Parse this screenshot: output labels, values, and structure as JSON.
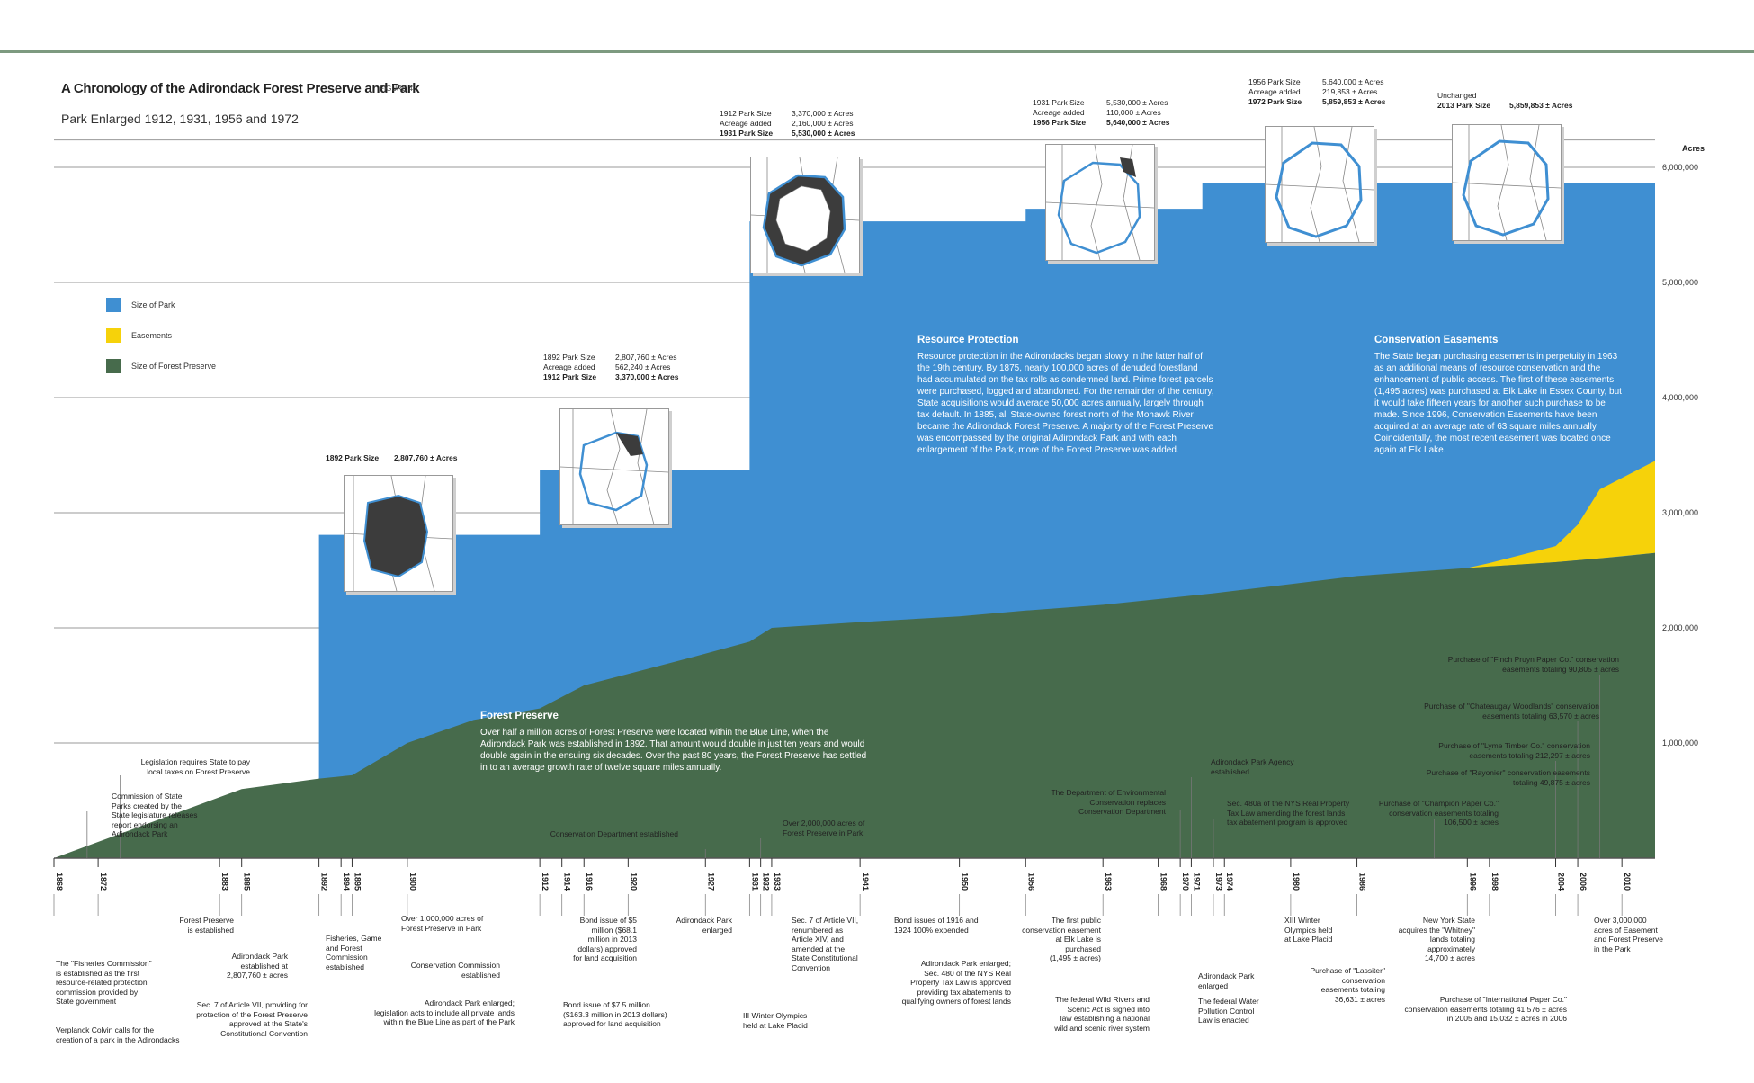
{
  "header": {
    "title": "A Chronology of the Adirondack Forest Preserve and Park",
    "figure_label": "FIGURE 4",
    "subtitle": "Park Enlarged 1912, 1931, 1956 and 1972"
  },
  "legend": [
    {
      "label": "Size of Park",
      "color": "#3f8fd2"
    },
    {
      "label": "Easements",
      "color": "#f6d20a"
    },
    {
      "label": "Size of Forest Preserve",
      "color": "#476b4c"
    }
  ],
  "colors": {
    "park": "#3f8fd2",
    "easements": "#f6d20a",
    "preserve": "#476b4c",
    "rule": "#7d9a80"
  },
  "chart_data": {
    "type": "area",
    "ylabel": "Acres",
    "ylim": [
      0,
      6300000
    ],
    "yticks": [
      "1,000,000",
      "2,000,000",
      "3,000,000",
      "4,000,000",
      "5,000,000",
      "6,000,000"
    ],
    "xlim": [
      1868,
      2013
    ],
    "xtick_labels": [
      "1868",
      "1872",
      "1885",
      "1883",
      "1892",
      "1894",
      "1895",
      "1900",
      "1912",
      "1914",
      "1916",
      "1920",
      "1927",
      "1931",
      "1932",
      "1933",
      "1941",
      "1950",
      "1956",
      "1963",
      "1968",
      "1970",
      "1971",
      "1973",
      "1974",
      "1980",
      "1986",
      "1996",
      "1998",
      "2004",
      "2006",
      "2010"
    ],
    "series": [
      {
        "name": "Size of Park",
        "values": [
          [
            1892,
            2807760
          ],
          [
            1912,
            2807760
          ],
          [
            1912,
            3370000
          ],
          [
            1931,
            3370000
          ],
          [
            1931,
            5530000
          ],
          [
            1956,
            5530000
          ],
          [
            1956,
            5640000
          ],
          [
            1972,
            5640000
          ],
          [
            1972,
            5859853
          ],
          [
            2013,
            5859853
          ]
        ]
      },
      {
        "name": "Size of Forest Preserve",
        "values": [
          [
            1868,
            0
          ],
          [
            1885,
            600000
          ],
          [
            1892,
            690000
          ],
          [
            1895,
            720000
          ],
          [
            1900,
            1000000
          ],
          [
            1906,
            1200000
          ],
          [
            1912,
            1300000
          ],
          [
            1916,
            1500000
          ],
          [
            1920,
            1600000
          ],
          [
            1926,
            1750000
          ],
          [
            1931,
            1880000
          ],
          [
            1933,
            2000000
          ],
          [
            1941,
            2050000
          ],
          [
            1950,
            2100000
          ],
          [
            1956,
            2150000
          ],
          [
            1963,
            2200000
          ],
          [
            1968,
            2250000
          ],
          [
            1973,
            2300000
          ],
          [
            1980,
            2380000
          ],
          [
            1986,
            2450000
          ],
          [
            1996,
            2520000
          ],
          [
            2004,
            2570000
          ],
          [
            2010,
            2620000
          ],
          [
            2013,
            2650000
          ]
        ]
      },
      {
        "name": "Easements",
        "values": [
          [
            1963,
            0
          ],
          [
            1996,
            0
          ],
          [
            1998,
            30000
          ],
          [
            2004,
            140000
          ],
          [
            2006,
            310000
          ],
          [
            2008,
            600000
          ],
          [
            2013,
            800000
          ]
        ]
      }
    ],
    "annotations": {
      "resource_protection": {
        "title": "Resource Protection",
        "text": "Resource protection in the Adirondacks began slowly in the latter half of the 19th century. By 1875, nearly 100,000 acres of denuded forestland had accumulated on the tax rolls as condemned land. Prime forest parcels were purchased, logged and abandoned. For the remainder of the century, State acquisitions would average 50,000 acres annually, largely through tax default. In 1885, all State-owned forest north of the Mohawk River became the Adirondack Forest Preserve. A majority of the Forest Preserve was encompassed by the original Adirondack Park and with each enlargement of the Park, more of the Forest Preserve was added."
      },
      "conservation_easements": {
        "title": "Conservation Easements",
        "text": "The State began purchasing easements in perpetuity in 1963 as an additional means of resource conservation and the enhancement of public access. The first of these easements (1,495 acres) was purchased at Elk Lake in Essex County, but it would take fifteen years for another such purchase to be made. Since 1996, Conservation Easements have been acquired at an average rate of 63 square miles annually. Coincidentally, the most recent easement was located once again at Elk Lake."
      },
      "forest_preserve": {
        "title": "Forest Preserve",
        "text": "Over half a million acres of Forest Preserve were located within the Blue Line, when the Adirondack Park was established in 1892. That amount would double in just ten years and would double again in the ensuing six decades. Over the past 80 years, the Forest Preserve has settled in to an average growth rate of twelve square miles annually."
      }
    },
    "park_tables": [
      {
        "rows": [
          {
            "label": "1892 Park Size",
            "value": "2,807,760 ± Acres",
            "bold": true
          }
        ]
      },
      {
        "rows": [
          {
            "label": "1892 Park Size",
            "value": "2,807,760 ± Acres",
            "bold": false
          },
          {
            "label": "Acreage added",
            "value": "562,240 ± Acres",
            "bold": false
          },
          {
            "label": "1912 Park Size",
            "value": "3,370,000 ± Acres",
            "bold": true
          }
        ]
      },
      {
        "rows": [
          {
            "label": "1912 Park Size",
            "value": "3,370,000 ± Acres",
            "bold": false
          },
          {
            "label": "Acreage added",
            "value": "2,160,000 ± Acres",
            "bold": false
          },
          {
            "label": "1931 Park Size",
            "value": "5,530,000 ± Acres",
            "bold": true
          }
        ]
      },
      {
        "rows": [
          {
            "label": "1931 Park Size",
            "value": "5,530,000 ± Acres",
            "bold": false
          },
          {
            "label": "Acreage added",
            "value": "110,000 ± Acres",
            "bold": false
          },
          {
            "label": "1956 Park Size",
            "value": "5,640,000 ± Acres",
            "bold": true
          }
        ]
      },
      {
        "rows": [
          {
            "label": "1956 Park Size",
            "value": "5,640,000 ± Acres",
            "bold": false
          },
          {
            "label": "Acreage added",
            "value": "219,853 ± Acres",
            "bold": false
          },
          {
            "label": "1972 Park Size",
            "value": "5,859,853 ± Acres",
            "bold": true
          }
        ]
      },
      {
        "rows": [
          {
            "label": "Unchanged",
            "value": "",
            "bold": false
          },
          {
            "label": "2013 Park Size",
            "value": "5,859,853 ± Acres",
            "bold": true
          }
        ]
      }
    ],
    "upper_callouts": [
      "Legislation requires State to pay\nlocal taxes on Forest Preserve",
      "Commission of State\nParks created by the\nState legislature releases\nreport endorsing an\nAdirondack Park",
      "Conservation Department established",
      "Over 2,000,000 acres of\nForest Preserve in Park",
      "The Department of Environmental\nConservation replaces\nConservation Department",
      "Adirondack Park Agency\nestablished",
      "Sec. 480a of the NYS Real Property\nTax Law amending the forest lands\ntax abatement program is approved",
      "Purchase of \"Champion Paper Co.\"\nconservation easements totaling\n106,500 ± acres",
      "Purchase of \"Lyme Timber Co.\" conservation\neasements totaling 212,297 ± acres",
      "Purchase of \"Rayonier\" conservation easements\ntotaling 49,875 ± acres",
      "Purchase of \"Chateaugay Woodlands\" conservation\neasements totaling 63,570 ± acres",
      "Purchase of \"Finch Pruyn Paper Co.\" conservation\neasements totaling 90,805 ± acres"
    ],
    "lower_callouts": [
      "The \"Fisheries Commission\"\nis established as the first\nresource-related protection\ncommission provided by\nState government",
      "Verplanck Colvin calls for the\ncreation of a park in the Adirondacks",
      "Forest Preserve\nis established",
      "Adirondack Park\nestablished at\n2,807,760 ± acres",
      "Sec. 7 of Article VII, providing for\nprotection of the Forest Preserve\napproved at the State's\nConstitutional Convention",
      "Fisheries, Game\nand Forest\nCommission\nestablished",
      "Over 1,000,000 acres of\nForest Preserve in Park",
      "Conservation Commission\nestablished",
      "Adirondack Park enlarged;\nlegislation acts to include all private lands\nwithin the Blue Line as part of the Park",
      "Bond issue of $5\nmillion ($68.1\nmillion in 2013\ndollars) approved\nfor land acquisition",
      "Bond issue of $7.5 million\n($163.3 million in 2013 dollars)\napproved for land acquisition",
      "Adirondack Park\nenlarged",
      "III Winter Olympics\nheld at Lake Placid",
      "Sec. 7 of Article VII,\nrenumbered as\nArticle XIV, and\namended at the\nState Constitutional\nConvention",
      "Bond issues of 1916 and\n1924 100% expended",
      "Adirondack Park enlarged;\nSec. 480 of the NYS Real\nProperty Tax Law is approved\nproviding tax abatements to\nqualifying owners of forest lands",
      "The first public\nconservation easement\nat Elk Lake is\npurchased\n(1,495 ± acres)",
      "The federal Wild Rivers and\nScenic Act is signed into\nlaw establishing a national\nwild and scenic river system",
      "Adirondack Park\nenlarged",
      "The federal Water\nPollution Control\nLaw is enacted",
      "XIII Winter\nOlympics held\nat Lake Placid",
      "Purchase of \"Lassiter\"\nconservation\neasements totaling\n36,631 ± acres",
      "New York State\nacquires the \"Whitney\"\nlands totaling\napproximately\n14,700 ± acres",
      "Purchase of \"International Paper Co.\"\nconservation easements totaling 41,576 ± acres\nin 2005 and 15,032 ± acres in 2006",
      "Over 3,000,000\nacres of Easement\nand Forest Preserve\nin the Park"
    ]
  }
}
